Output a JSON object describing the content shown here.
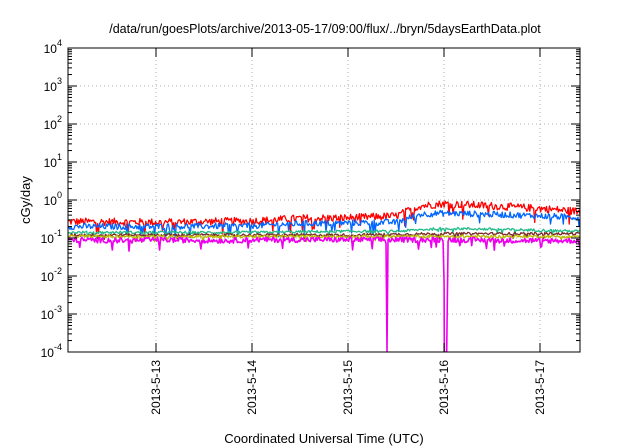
{
  "chart_data": {
    "type": "line",
    "title": "/data/run/goesPlots/archive/2013-05-17/09:00/flux/../bryn/5daysEarthData.plot",
    "xlabel": "Coordinated Universal Time (UTC)",
    "ylabel": "cGy/day",
    "yscale": "log",
    "ylim": [
      0.0001,
      10000
    ],
    "xlim": [
      "2013-05-12 02:00",
      "2013-05-17 10:00"
    ],
    "grid": true,
    "y_ticks": [
      {
        "value": 0.0001,
        "base": "10",
        "exp": "-4"
      },
      {
        "value": 0.001,
        "base": "10",
        "exp": "-3"
      },
      {
        "value": 0.01,
        "base": "10",
        "exp": "-2"
      },
      {
        "value": 0.1,
        "base": "10",
        "exp": "-1"
      },
      {
        "value": 1,
        "base": "10",
        "exp": "0"
      },
      {
        "value": 10,
        "base": "10",
        "exp": "1"
      },
      {
        "value": 100,
        "base": "10",
        "exp": "2"
      },
      {
        "value": 1000,
        "base": "10",
        "exp": "3"
      },
      {
        "value": 10000,
        "base": "10",
        "exp": "4"
      }
    ],
    "x_ticks": [
      "2013-5-13",
      "2013-5-14",
      "2013-5-15",
      "2013-5-16",
      "2013-5-17"
    ],
    "series": [
      {
        "color": "#ff0000",
        "x": [
          "2013-05-12 02:00",
          "2013-05-13 00:00",
          "2013-05-14 00:00",
          "2013-05-14 12:00",
          "2013-05-15 00:00",
          "2013-05-15 12:00",
          "2013-05-15 18:00",
          "2013-05-16 00:00",
          "2013-05-16 12:00",
          "2013-05-17 00:00",
          "2013-05-17 10:00"
        ],
        "values": [
          0.27,
          0.26,
          0.28,
          0.33,
          0.34,
          0.38,
          0.7,
          0.8,
          0.7,
          0.6,
          0.5
        ]
      },
      {
        "color": "#0066ff",
        "x": [
          "2013-05-12 02:00",
          "2013-05-13 00:00",
          "2013-05-14 00:00",
          "2013-05-14 12:00",
          "2013-05-15 00:00",
          "2013-05-15 12:00",
          "2013-05-15 18:00",
          "2013-05-16 00:00",
          "2013-05-16 12:00",
          "2013-05-17 00:00",
          "2013-05-17 10:00"
        ],
        "values": [
          0.2,
          0.2,
          0.21,
          0.24,
          0.25,
          0.26,
          0.42,
          0.45,
          0.42,
          0.38,
          0.35
        ]
      },
      {
        "color": "#22bb88",
        "x": [
          "2013-05-12 02:00",
          "2013-05-13 00:00",
          "2013-05-14 00:00",
          "2013-05-15 00:00",
          "2013-05-15 12:00",
          "2013-05-16 00:00",
          "2013-05-16 12:00",
          "2013-05-17 00:00",
          "2013-05-17 10:00"
        ],
        "values": [
          0.14,
          0.14,
          0.14,
          0.15,
          0.15,
          0.18,
          0.17,
          0.16,
          0.15
        ]
      },
      {
        "color": "#7a2a2a",
        "x": [
          "2013-05-12 02:00",
          "2013-05-13 00:00",
          "2013-05-14 00:00",
          "2013-05-15 00:00",
          "2013-05-16 00:00",
          "2013-05-17 00:00",
          "2013-05-17 10:00"
        ],
        "values": [
          0.12,
          0.12,
          0.12,
          0.12,
          0.13,
          0.13,
          0.13
        ]
      },
      {
        "color": "#bbbb00",
        "x": [
          "2013-05-12 02:00",
          "2013-05-13 00:00",
          "2013-05-14 00:00",
          "2013-05-15 00:00",
          "2013-05-16 00:00",
          "2013-05-17 00:00",
          "2013-05-17 10:00"
        ],
        "values": [
          0.11,
          0.11,
          0.11,
          0.11,
          0.11,
          0.11,
          0.11
        ]
      },
      {
        "color": "#ee00ee",
        "x": [
          "2013-05-12 02:00",
          "2013-05-12 18:00",
          "2013-05-13 00:00",
          "2013-05-13 18:00",
          "2013-05-14 00:00",
          "2013-05-15 00:00",
          "2013-05-15 09:30",
          "2013-05-15 09:45",
          "2013-05-15 10:00",
          "2013-05-16 00:00",
          "2013-05-16 00:05",
          "2013-05-16 00:40",
          "2013-05-16 01:00",
          "2013-05-17 00:00",
          "2013-05-17 10:00"
        ],
        "values": [
          0.09,
          0.085,
          0.09,
          0.085,
          0.09,
          0.09,
          0.09,
          0.0001,
          0.09,
          0.09,
          0.0001,
          0.0001,
          0.09,
          0.085,
          0.085
        ]
      }
    ]
  }
}
